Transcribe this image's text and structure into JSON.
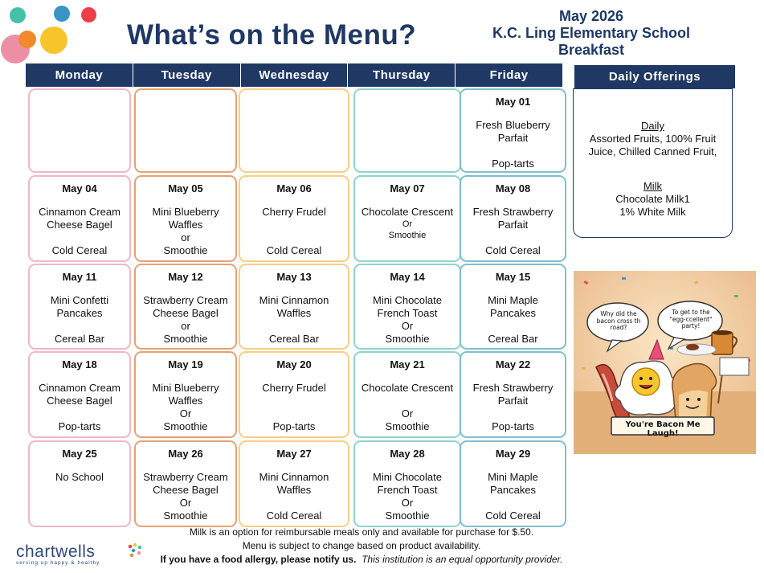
{
  "title": "What’s on the Menu?",
  "school": {
    "month": "May  2026",
    "name": "K.C. Ling Elementary School",
    "meal": "Breakfast"
  },
  "days": [
    "Monday",
    "Tuesday",
    "Wednesday",
    "Thursday",
    "Friday"
  ],
  "daily_offerings": {
    "header": "Daily Offerings",
    "daily_heading": "Daily",
    "daily_lines": [
      "Assorted Fruits, 100% Fruit",
      "Juice, Chilled Canned Fruit,"
    ],
    "milk_heading": "Milk",
    "milk_lines": [
      "Chocolate Milk1",
      "1% White Milk"
    ]
  },
  "weeks": [
    [
      {
        "date": "",
        "lines": []
      },
      {
        "date": "",
        "lines": []
      },
      {
        "date": "",
        "lines": []
      },
      {
        "date": "",
        "lines": []
      },
      {
        "date": "May 01",
        "lines": [
          "Fresh Blueberry",
          "Parfait",
          "",
          "Pop-tarts"
        ]
      }
    ],
    [
      {
        "date": "May 04",
        "lines": [
          "Cinnamon Cream",
          "Cheese Bagel",
          "",
          "Cold Cereal"
        ]
      },
      {
        "date": "May 05",
        "lines": [
          "Mini Blueberry",
          "Waffles",
          "or",
          "Smoothie"
        ]
      },
      {
        "date": "May 06",
        "lines": [
          "Cherry Frudel",
          "",
          "",
          "Cold Cereal"
        ]
      },
      {
        "date": "May 07",
        "lines": [
          "Chocolate Crescent",
          "Or",
          "Smoothie"
        ]
      },
      {
        "date": "May 08",
        "lines": [
          "Fresh Strawberry",
          "Parfait",
          "",
          "Cold Cereal"
        ]
      }
    ],
    [
      {
        "date": "May 11",
        "lines": [
          "Mini Confetti",
          "Pancakes",
          "",
          "Cereal Bar"
        ]
      },
      {
        "date": "May 12",
        "lines": [
          "Strawberry Cream",
          "Cheese Bagel",
          "or",
          "Smoothie"
        ]
      },
      {
        "date": "May 13",
        "lines": [
          "Mini Cinnamon",
          "Waffles",
          "",
          "Cereal Bar"
        ]
      },
      {
        "date": "May 14",
        "lines": [
          "Mini Chocolate",
          "French Toast",
          "Or",
          "Smoothie"
        ]
      },
      {
        "date": "May 15",
        "lines": [
          "Mini Maple",
          "Pancakes",
          "",
          "Cereal Bar"
        ]
      }
    ],
    [
      {
        "date": "May 18",
        "lines": [
          "Cinnamon Cream",
          "Cheese Bagel",
          "",
          "Pop-tarts"
        ]
      },
      {
        "date": "May 19",
        "lines": [
          "Mini Blueberry",
          "Waffles",
          "Or",
          "Smoothie"
        ]
      },
      {
        "date": "May 20",
        "lines": [
          "Cherry Frudel",
          "",
          "",
          "Pop-tarts"
        ]
      },
      {
        "date": "May 21",
        "lines": [
          "Chocolate Crescent",
          "",
          "Or",
          "Smoothie"
        ]
      },
      {
        "date": "May 22",
        "lines": [
          "Fresh Strawberry",
          "Parfait",
          "",
          "Pop-tarts"
        ]
      }
    ],
    [
      {
        "date": "May 25",
        "lines": [
          "No School"
        ]
      },
      {
        "date": "May 26",
        "lines": [
          "Strawberry Cream",
          "Cheese Bagel",
          "Or",
          "Smoothie"
        ]
      },
      {
        "date": "May 27",
        "lines": [
          "Mini Cinnamon",
          "Waffles",
          "",
          "Cold Cereal"
        ]
      },
      {
        "date": "May 28",
        "lines": [
          "Mini Chocolate",
          "French Toast",
          "Or",
          "Smoothie"
        ]
      },
      {
        "date": "May 29",
        "lines": [
          "Mini Maple",
          "Pancakes",
          "",
          "Cold Cereal"
        ]
      }
    ]
  ],
  "illustration": {
    "bubble_left": "Why did the bacon cross th road?",
    "bubble_right": "To get to the \"egg-ccellent\" party!",
    "caption": "You're Bacon Me Laugh!"
  },
  "footer": {
    "line1": "Milk is an option for reimbursable meals only and available for purchase for $.50.",
    "line2": "Menu is subject to change based on product availability.",
    "line3_bold": "If you have a food allergy, please notify us.",
    "line3_italic": "This institution is an equal opportunity provider."
  },
  "logo": {
    "word": "chartwells",
    "tagline": "serving up happy & healthy"
  },
  "colors": {
    "navy": "#1f3864",
    "pink": "#f0b7c8",
    "orange": "#e3a374",
    "yellow": "#f6cf86",
    "teal": "#8fd3d0"
  }
}
